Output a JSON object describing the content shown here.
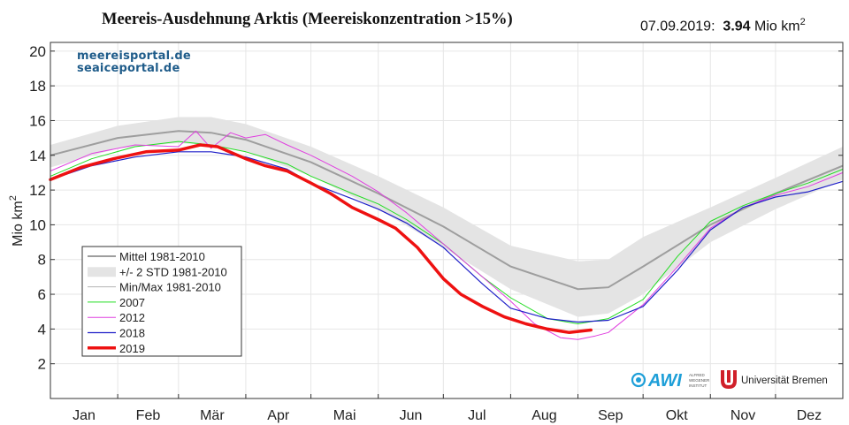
{
  "header": {
    "title": "Meereis-Ausdehnung Arktis (Meereiskonzentration >15%)",
    "date": "07.09.2019:",
    "value": "3.94",
    "unit": "Mio km",
    "unit_exp": "2"
  },
  "portal": {
    "line1": "meereisportal.de",
    "line2": "seaiceportal.de"
  },
  "logos": {
    "awi": "AWI",
    "awi_sub1": "ALFRED",
    "awi_sub2": "WEGENER",
    "awi_sub3": "INSTITUT",
    "ub": "Universität Bremen"
  },
  "chart_data": {
    "type": "line",
    "ylabel": "Mio km",
    "ylabel_exp": "2",
    "ylim": [
      0,
      20.5
    ],
    "yticks": [
      2,
      4,
      6,
      8,
      10,
      12,
      14,
      16,
      18,
      20
    ],
    "xlim": [
      1,
      366
    ],
    "months": [
      "Jan",
      "Feb",
      "Mär",
      "Apr",
      "Mai",
      "Jun",
      "Jul",
      "Aug",
      "Sep",
      "Okt",
      "Nov",
      "Dez"
    ],
    "grid": true,
    "legend_position": "lower-left",
    "colors": {
      "mean": "#9e9e9e",
      "band": "#e4e4e4",
      "minmax": "#b5b5b5",
      "y2007": "#22dd22",
      "y2012": "#e040e0",
      "y2018": "#1f1fc8",
      "y2019": "#ee1111"
    },
    "series": [
      {
        "key": "mean",
        "name": "Mittel 1981-2010",
        "x": [
          1,
          32,
          60,
          75,
          91,
          121,
          152,
          182,
          213,
          244,
          258,
          274,
          305,
          335,
          366
        ],
        "y": [
          14.0,
          15.0,
          15.4,
          15.3,
          14.9,
          13.6,
          11.8,
          9.9,
          7.6,
          6.3,
          6.4,
          7.6,
          10.0,
          11.8,
          13.4
        ]
      },
      {
        "key": "band",
        "name": "+/- 2 STD 1981-2010",
        "x": [
          1,
          32,
          60,
          75,
          91,
          121,
          152,
          182,
          213,
          244,
          258,
          274,
          305,
          335,
          366
        ],
        "upper": [
          14.6,
          15.7,
          16.2,
          16.2,
          15.8,
          14.5,
          12.8,
          11.0,
          8.8,
          7.9,
          8.0,
          9.3,
          11.0,
          12.7,
          14.5
        ],
        "lower": [
          13.3,
          14.4,
          14.7,
          14.6,
          14.2,
          12.8,
          10.9,
          8.7,
          6.3,
          4.7,
          4.9,
          6.0,
          9.0,
          10.9,
          12.6
        ]
      },
      {
        "key": "minmax",
        "name": "Min/Max 1981-2010",
        "x": [],
        "y": []
      },
      {
        "key": "y2007",
        "name": "2007",
        "x": [
          1,
          20,
          40,
          60,
          75,
          91,
          110,
          121,
          140,
          152,
          165,
          182,
          200,
          213,
          230,
          244,
          258,
          274,
          290,
          305,
          320,
          335,
          350,
          366
        ],
        "y": [
          12.8,
          13.8,
          14.5,
          14.8,
          14.6,
          14.2,
          13.5,
          12.8,
          11.8,
          11.2,
          10.3,
          8.9,
          7.0,
          5.8,
          4.6,
          4.3,
          4.6,
          5.7,
          8.2,
          10.2,
          11.1,
          11.8,
          12.4,
          13.2
        ]
      },
      {
        "key": "y2012",
        "name": "2012",
        "x": [
          1,
          20,
          40,
          60,
          68,
          75,
          84,
          91,
          100,
          110,
          121,
          140,
          152,
          165,
          182,
          200,
          213,
          224,
          236,
          244,
          252,
          258,
          274,
          290,
          305,
          320,
          335,
          350,
          366
        ],
        "y": [
          13.1,
          14.1,
          14.6,
          14.5,
          15.4,
          14.4,
          15.3,
          15.0,
          15.2,
          14.6,
          14.0,
          12.8,
          11.9,
          10.7,
          8.9,
          7.0,
          5.6,
          4.3,
          3.5,
          3.4,
          3.6,
          3.8,
          5.4,
          7.6,
          9.8,
          11.0,
          11.7,
          12.2,
          13.0
        ]
      },
      {
        "key": "y2018",
        "name": "2018",
        "x": [
          1,
          20,
          40,
          60,
          75,
          91,
          110,
          121,
          140,
          152,
          165,
          182,
          200,
          213,
          230,
          244,
          258,
          274,
          290,
          305,
          320,
          335,
          350,
          366
        ],
        "y": [
          12.6,
          13.4,
          13.9,
          14.2,
          14.2,
          13.9,
          13.2,
          12.4,
          11.5,
          10.9,
          10.1,
          8.7,
          6.6,
          5.2,
          4.6,
          4.4,
          4.5,
          5.3,
          7.4,
          9.7,
          11.0,
          11.6,
          11.9,
          12.5
        ]
      },
      {
        "key": "y2019",
        "name": "2019",
        "x": [
          1,
          15,
          30,
          45,
          60,
          70,
          78,
          91,
          100,
          110,
          121,
          130,
          140,
          152,
          160,
          170,
          182,
          190,
          200,
          210,
          220,
          230,
          240,
          250
        ],
        "y": [
          12.6,
          13.3,
          13.8,
          14.2,
          14.3,
          14.6,
          14.5,
          13.8,
          13.4,
          13.1,
          12.4,
          11.8,
          11.0,
          10.3,
          9.8,
          8.7,
          6.9,
          6.0,
          5.3,
          4.7,
          4.3,
          4.0,
          3.8,
          3.94
        ]
      }
    ]
  }
}
